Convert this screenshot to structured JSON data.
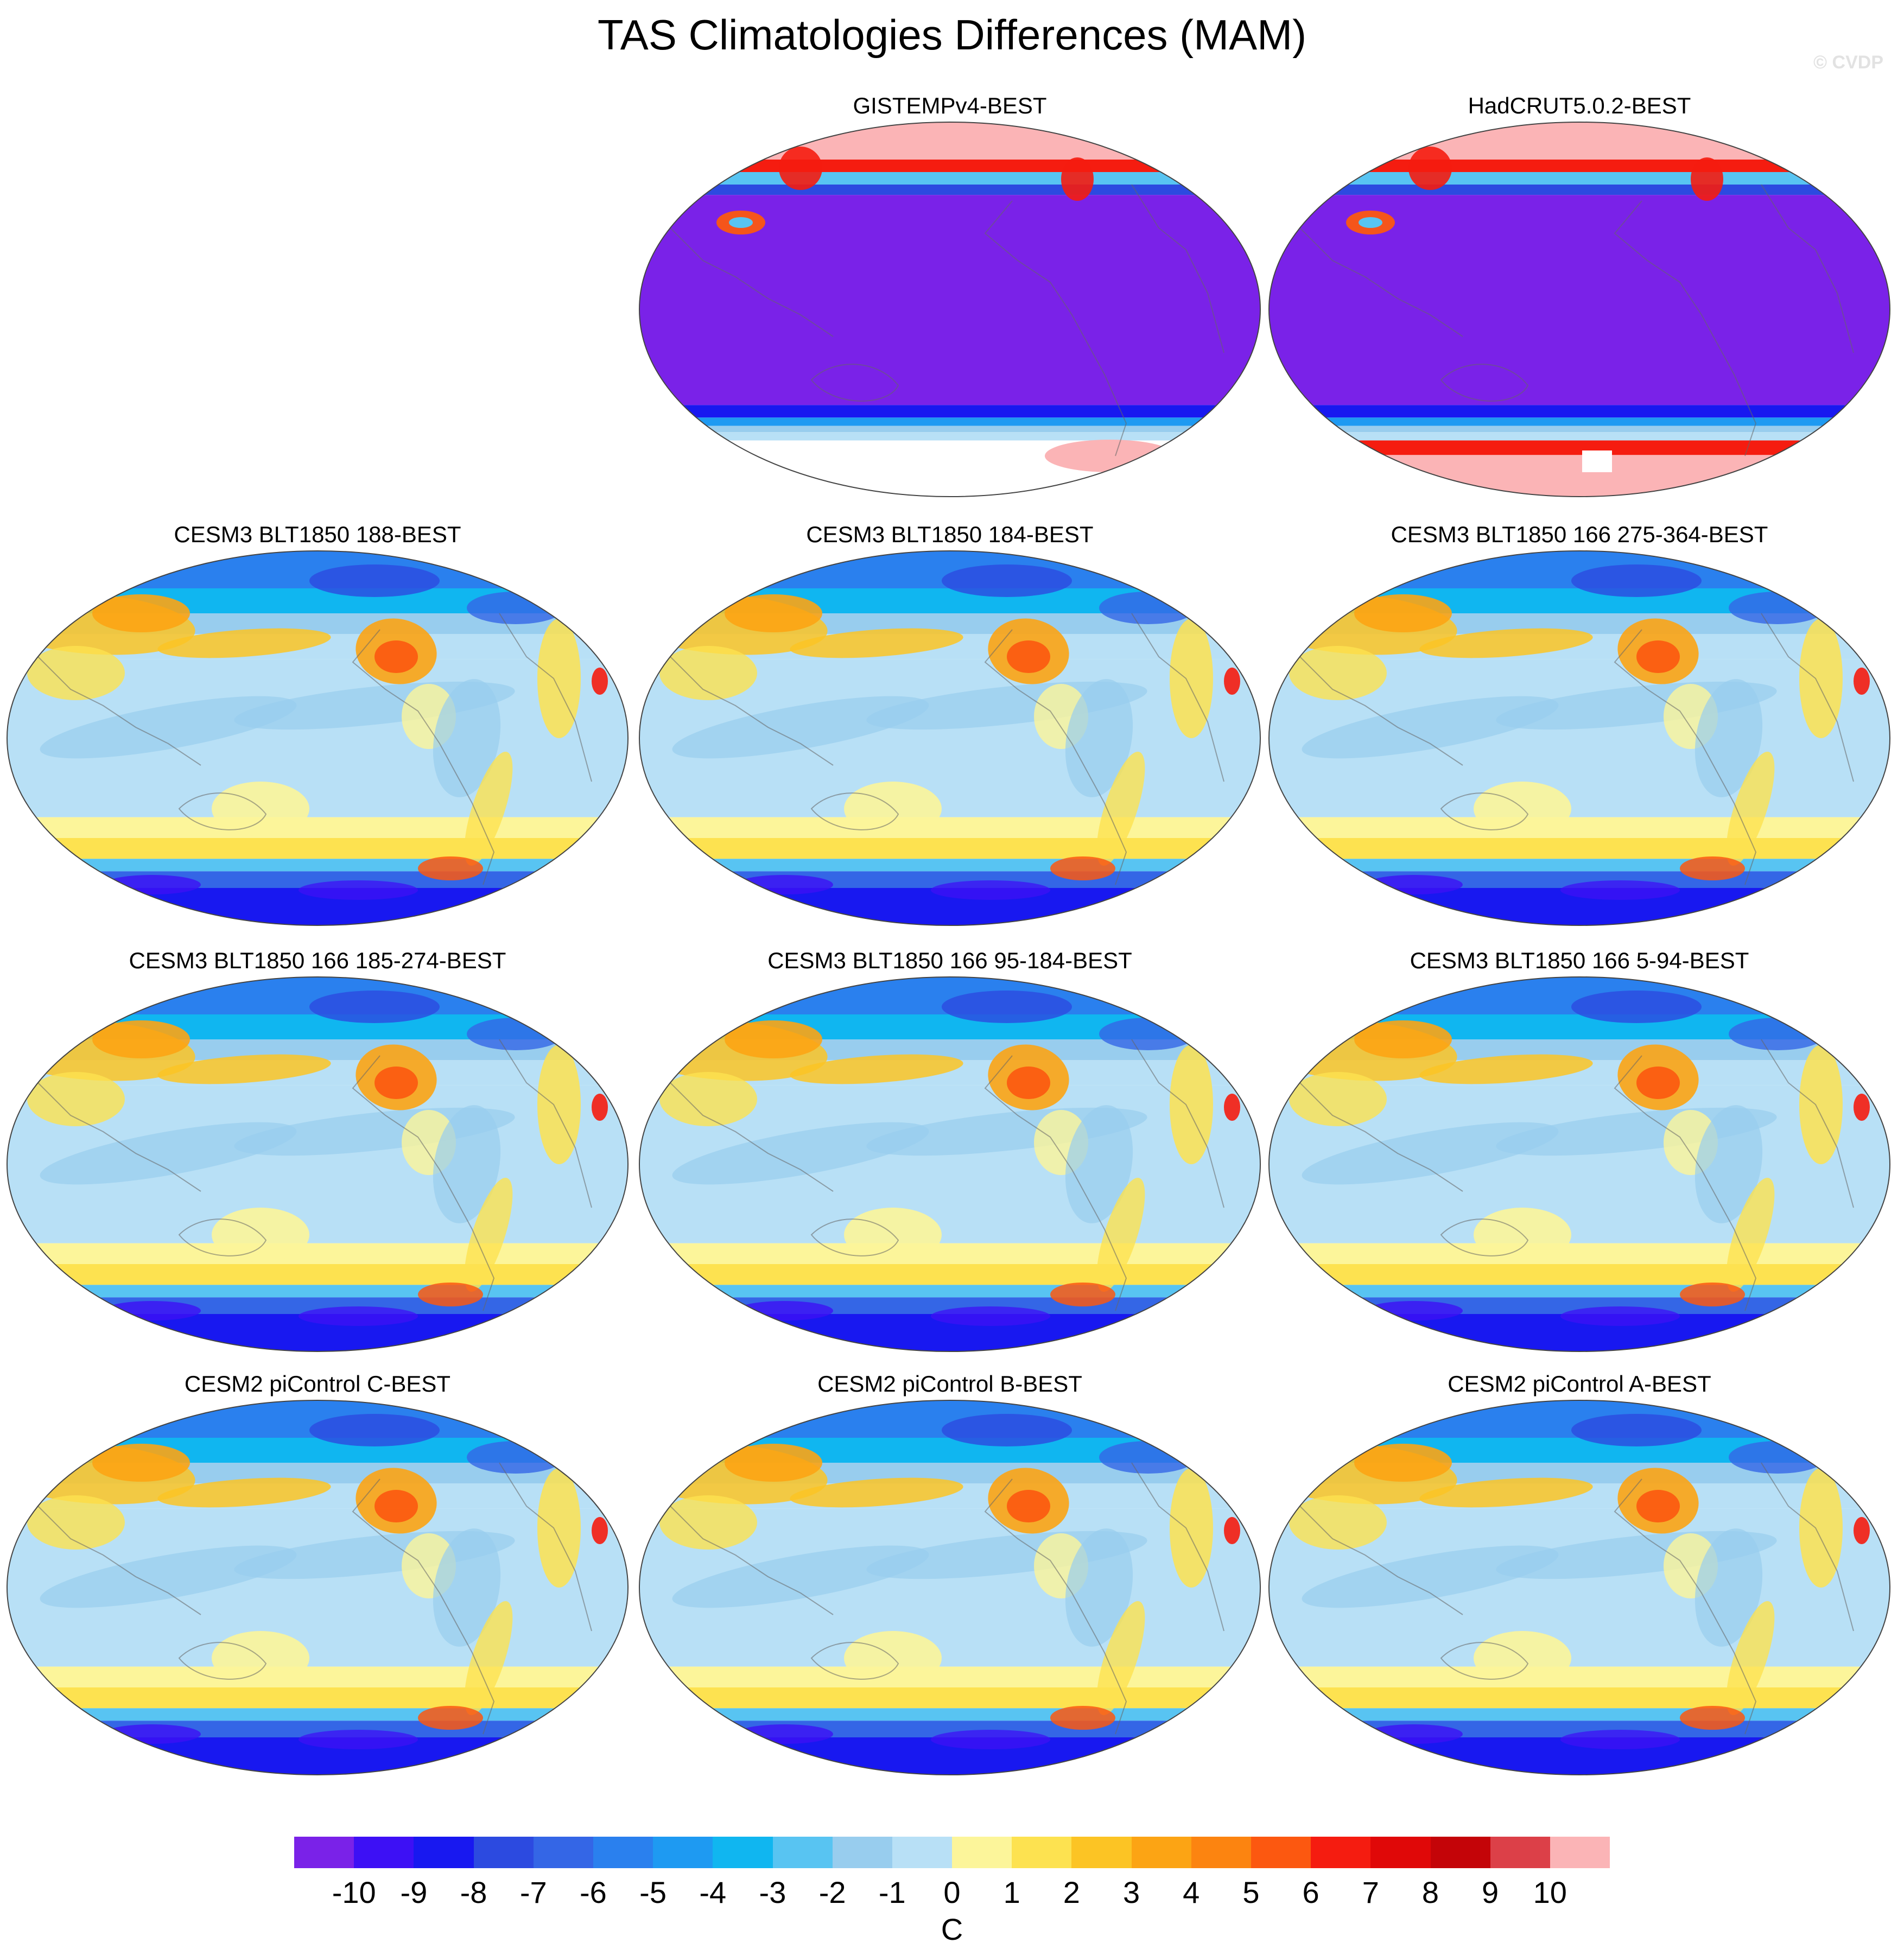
{
  "title": "TAS Climatologies Differences (MAM)",
  "watermark": "© CVDP",
  "panels": [
    {
      "label": "GISTEMPv4-BEST",
      "style": "obs-gistemp"
    },
    {
      "label": "HadCRUT5.0.2-BEST",
      "style": "obs-hadcrut"
    },
    {
      "label": "CESM3 BLT1850 188-BEST",
      "style": "model"
    },
    {
      "label": "CESM3 BLT1850 184-BEST",
      "style": "model"
    },
    {
      "label": "CESM3 BLT1850 166 275-364-BEST",
      "style": "model"
    },
    {
      "label": "CESM3 BLT1850 166 185-274-BEST",
      "style": "model"
    },
    {
      "label": "CESM3 BLT1850 166 95-184-BEST",
      "style": "model"
    },
    {
      "label": "CESM3 BLT1850 166 5-94-BEST",
      "style": "model"
    },
    {
      "label": "CESM2 piControl C-BEST",
      "style": "model"
    },
    {
      "label": "CESM2 piControl B-BEST",
      "style": "model"
    },
    {
      "label": "CESM2 piControl A-BEST",
      "style": "model"
    }
  ],
  "colorbar": {
    "unit": "C",
    "tick_labels": [
      "-10",
      "-9",
      "-8",
      "-7",
      "-6",
      "-5",
      "-4",
      "-3",
      "-2",
      "-1",
      "0",
      "1",
      "2",
      "3",
      "4",
      "5",
      "6",
      "7",
      "8",
      "9",
      "10"
    ],
    "colors": [
      "#7a22e8",
      "#3d10f5",
      "#1818f0",
      "#2c4ae0",
      "#3466e6",
      "#2a80ee",
      "#1e9af2",
      "#10b6f0",
      "#58c4f2",
      "#98cdee",
      "#b8e0f6",
      "#fcf59a",
      "#fde250",
      "#fcc424",
      "#fca414",
      "#fc8410",
      "#fc5810",
      "#f51c10",
      "#e00808",
      "#c40408",
      "#dc4048",
      "#fbb4b6"
    ]
  }
}
